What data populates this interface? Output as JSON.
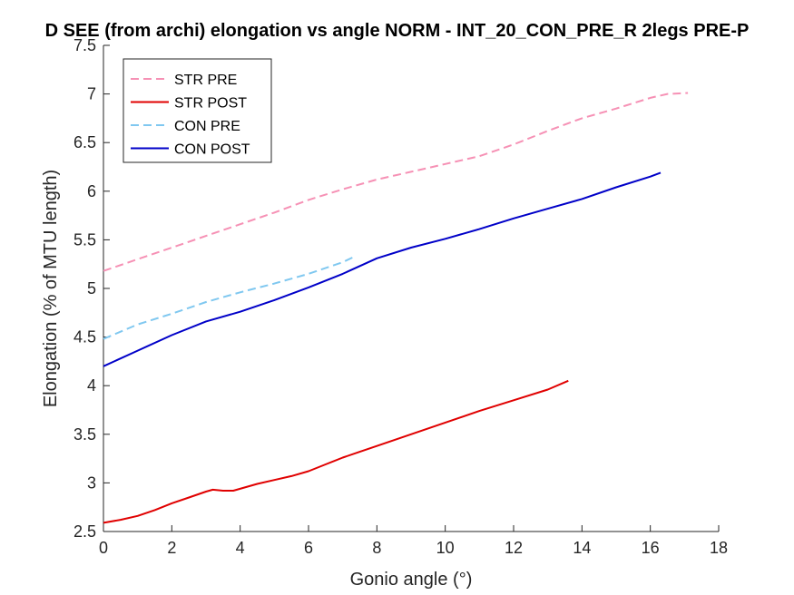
{
  "chart_data": {
    "type": "line",
    "title": "D SEE (from archi) elongation vs angle NORM - INT_20_CON_PRE_R 2legs PRE-P",
    "xlabel": "Gonio angle (°)",
    "ylabel": "Elongation (% of MTU length)",
    "xlim": [
      0,
      18
    ],
    "ylim": [
      2.5,
      7.5
    ],
    "xticks": [
      0,
      2,
      4,
      6,
      8,
      10,
      12,
      14,
      16,
      18
    ],
    "yticks": [
      2.5,
      3,
      3.5,
      4,
      4.5,
      5,
      5.5,
      6,
      6.5,
      7,
      7.5
    ],
    "grid": false,
    "legend_position": "top-left",
    "series": [
      {
        "name": "STR PRE",
        "color": "#f691b5",
        "style": "dashed",
        "x": [
          0,
          1,
          2,
          3,
          4,
          5,
          6,
          7,
          8,
          9,
          10,
          11,
          12,
          13,
          14,
          15,
          16,
          16.5,
          17.1
        ],
        "y": [
          5.18,
          5.3,
          5.42,
          5.54,
          5.66,
          5.78,
          5.91,
          6.02,
          6.12,
          6.2,
          6.28,
          6.36,
          6.48,
          6.62,
          6.75,
          6.85,
          6.96,
          7.0,
          7.01
        ]
      },
      {
        "name": "STR POST",
        "color": "#e00000",
        "style": "solid",
        "x": [
          0,
          0.5,
          1,
          1.5,
          2,
          2.5,
          3,
          3.2,
          3.5,
          3.8,
          4.5,
          5,
          5.5,
          6,
          6.5,
          7,
          7.5,
          8,
          9,
          10,
          11,
          12,
          13,
          13.6
        ],
        "y": [
          2.59,
          2.62,
          2.66,
          2.72,
          2.79,
          2.85,
          2.91,
          2.93,
          2.92,
          2.92,
          2.99,
          3.03,
          3.07,
          3.12,
          3.19,
          3.26,
          3.32,
          3.38,
          3.5,
          3.62,
          3.74,
          3.85,
          3.96,
          4.05
        ]
      },
      {
        "name": "CON PRE",
        "color": "#80c8f0",
        "style": "dashed",
        "x": [
          0,
          1,
          2,
          3,
          4,
          5,
          6,
          7,
          7.3
        ],
        "y": [
          4.48,
          4.63,
          4.74,
          4.86,
          4.96,
          5.05,
          5.15,
          5.27,
          5.32
        ]
      },
      {
        "name": "CON POST",
        "color": "#0000c8",
        "style": "solid",
        "x": [
          0,
          1,
          2,
          3,
          4,
          5,
          6,
          7,
          8,
          9,
          10,
          11,
          12,
          13,
          14,
          15,
          16,
          16.3
        ],
        "y": [
          4.2,
          4.36,
          4.52,
          4.66,
          4.76,
          4.88,
          5.01,
          5.15,
          5.31,
          5.42,
          5.51,
          5.61,
          5.72,
          5.82,
          5.92,
          6.04,
          6.15,
          6.19
        ]
      }
    ]
  }
}
